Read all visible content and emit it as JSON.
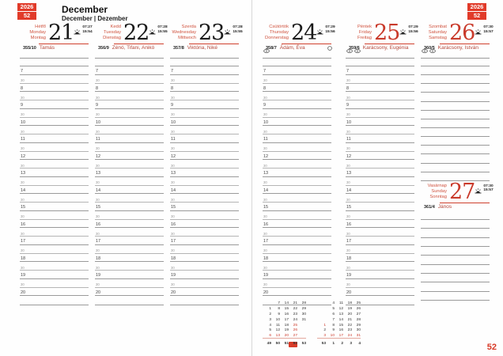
{
  "page": {
    "year": "2026",
    "week": "52",
    "month_title": "December",
    "month_subtitle": "December | Dezember",
    "page_number": "52",
    "accent_color": "#d83a27"
  },
  "days": [
    {
      "names": [
        "Hétfő",
        "Monday",
        "Montag"
      ],
      "num": "21",
      "sunrise": "07:27",
      "sunset": "15:54",
      "doy": "355/10",
      "namedays": "Tamás",
      "holiday": false,
      "line_markers": 0,
      "moon_full": false
    },
    {
      "names": [
        "Kedd",
        "Tuesday",
        "Dienstag"
      ],
      "num": "22",
      "sunrise": "07:28",
      "sunset": "15:55",
      "doy": "356/9",
      "namedays": "Zénó, Tifani, Anikó",
      "holiday": false,
      "line_markers": 0,
      "moon_full": false
    },
    {
      "names": [
        "Szerda",
        "Wednesday",
        "Mittwoch"
      ],
      "num": "23",
      "sunrise": "07:28",
      "sunset": "15:55",
      "doy": "357/8",
      "namedays": "Viktória, Niké",
      "holiday": false,
      "line_markers": 0,
      "moon_full": false
    },
    {
      "names": [
        "Csütörtök",
        "Thursday",
        "Donnerstag"
      ],
      "num": "24",
      "sunrise": "07:29",
      "sunset": "15:56",
      "doy": "358/7",
      "namedays": "Ádám, Éva",
      "holiday": false,
      "line_markers": 1,
      "moon_full": true
    },
    {
      "names": [
        "Péntek",
        "Friday",
        "Freitag"
      ],
      "num": "25",
      "sunrise": "07:29",
      "sunset": "15:56",
      "doy": "359/6",
      "namedays": "Karácsony, Eugénia",
      "holiday": true,
      "line_markers": 2,
      "moon_full": false
    },
    {
      "names": [
        "Szombat",
        "Saturday",
        "Samstag"
      ],
      "num": "26",
      "sunrise": "07:30",
      "sunset": "15:57",
      "doy": "360/5",
      "namedays": "Karácsony, István",
      "holiday": true,
      "line_markers": 2,
      "moon_full": false
    },
    {
      "names": [
        "Vasárnap",
        "Sunday",
        "Sonntag"
      ],
      "num": "27",
      "sunrise": "07:30",
      "sunset": "15:57",
      "doy": "361/4",
      "namedays": "János",
      "holiday": true,
      "line_markers": 0,
      "moon_full": false
    }
  ],
  "schedule": {
    "hours": [
      "7",
      "8",
      "9",
      "10",
      "11",
      "12",
      "13",
      "14",
      "15",
      "16",
      "17",
      "18",
      "19",
      "20"
    ],
    "half_label": "30"
  },
  "mini_calendar": {
    "months": [
      {
        "cells": [
          [
            "",
            "7",
            "14",
            "21",
            "28"
          ],
          [
            "1",
            "8",
            "15",
            "22",
            "29"
          ],
          [
            "2",
            "9",
            "16",
            "23",
            "30"
          ],
          [
            "3",
            "10",
            "17",
            "24",
            "31"
          ],
          [
            "4",
            "11",
            "18",
            "25",
            ""
          ],
          [
            "5",
            "12",
            "19",
            "26",
            ""
          ],
          [
            "6",
            "13",
            "20",
            "27",
            ""
          ]
        ],
        "red": [
          "6",
          "13",
          "20",
          "27",
          "25",
          "26"
        ],
        "weeks": [
          "49",
          "50",
          "51",
          "52",
          "53"
        ],
        "week_highlight": "52"
      },
      {
        "cells": [
          [
            "",
            "4",
            "11",
            "18",
            "25"
          ],
          [
            "",
            "5",
            "12",
            "19",
            "26"
          ],
          [
            "",
            "6",
            "13",
            "20",
            "27"
          ],
          [
            "",
            "7",
            "14",
            "21",
            "28"
          ],
          [
            "1",
            "8",
            "15",
            "22",
            "29"
          ],
          [
            "2",
            "9",
            "16",
            "23",
            "30"
          ],
          [
            "3",
            "10",
            "17",
            "24",
            "31"
          ]
        ],
        "red": [
          "1",
          "3",
          "10",
          "17",
          "24",
          "31"
        ],
        "weeks": [
          "53",
          "1",
          "2",
          "3",
          "4"
        ],
        "week_highlight": ""
      }
    ]
  }
}
